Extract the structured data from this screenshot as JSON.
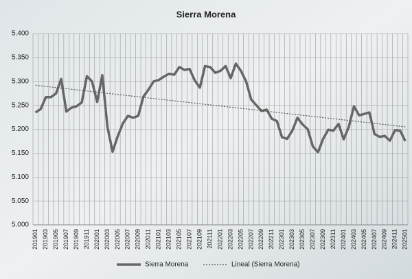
{
  "chart_data": {
    "type": "line",
    "title": "Sierra Morena",
    "categories": [
      "201901",
      null,
      "201903",
      null,
      "201905",
      null,
      "201907",
      null,
      "201909",
      null,
      "201911",
      null,
      "202001",
      null,
      "202003",
      null,
      "202005",
      null,
      "202007",
      null,
      "202009",
      null,
      "202011",
      null,
      "202101",
      null,
      "202103",
      null,
      "202105",
      null,
      "202107",
      null,
      "202109",
      null,
      "202111",
      null,
      "202201",
      null,
      "202203",
      null,
      "202205",
      null,
      "202207",
      null,
      "202209",
      null,
      "202211",
      null,
      "202301",
      null,
      "202303",
      null,
      "202305",
      null,
      "202307",
      null,
      "202309",
      null,
      "202311",
      null,
      "202401",
      null,
      "202403",
      null,
      "202405",
      null,
      "202407",
      null,
      "202409",
      null,
      "202411",
      null,
      "202501"
    ],
    "series": [
      {
        "name": "Sierra Morena",
        "color": "#666666",
        "values": [
          5235,
          5242,
          5267,
          5267,
          5275,
          5305,
          5237,
          5245,
          5248,
          5256,
          5311,
          5300,
          5257,
          5313,
          5205,
          5153,
          5185,
          5212,
          5228,
          5224,
          5228,
          5268,
          5283,
          5300,
          5303,
          5310,
          5316,
          5314,
          5330,
          5324,
          5326,
          5302,
          5287,
          5332,
          5330,
          5318,
          5322,
          5332,
          5307,
          5337,
          5322,
          5300,
          5262,
          5250,
          5238,
          5241,
          5222,
          5217,
          5183,
          5180,
          5197,
          5224,
          5210,
          5200,
          5164,
          5152,
          5180,
          5199,
          5197,
          5211,
          5179,
          5205,
          5248,
          5229,
          5232,
          5235,
          5190,
          5184,
          5186,
          5176,
          5198,
          5197,
          5175
        ]
      }
    ],
    "trendline": {
      "name": "Lineal (Sierra Morena)",
      "color": "#555555",
      "start": 5292,
      "end": 5205
    },
    "ylim": [
      5000,
      5400
    ],
    "yticks": [
      {
        "value": 5000,
        "label": "5.000"
      },
      {
        "value": 5050,
        "label": "5.050"
      },
      {
        "value": 5100,
        "label": "5.100"
      },
      {
        "value": 5150,
        "label": "5.150"
      },
      {
        "value": 5200,
        "label": "5.200"
      },
      {
        "value": 5250,
        "label": "5.250"
      },
      {
        "value": 5300,
        "label": "5.300"
      },
      {
        "value": 5350,
        "label": "5.350"
      },
      {
        "value": 5400,
        "label": "5.400"
      }
    ],
    "grid": true,
    "legend": "bottom"
  }
}
